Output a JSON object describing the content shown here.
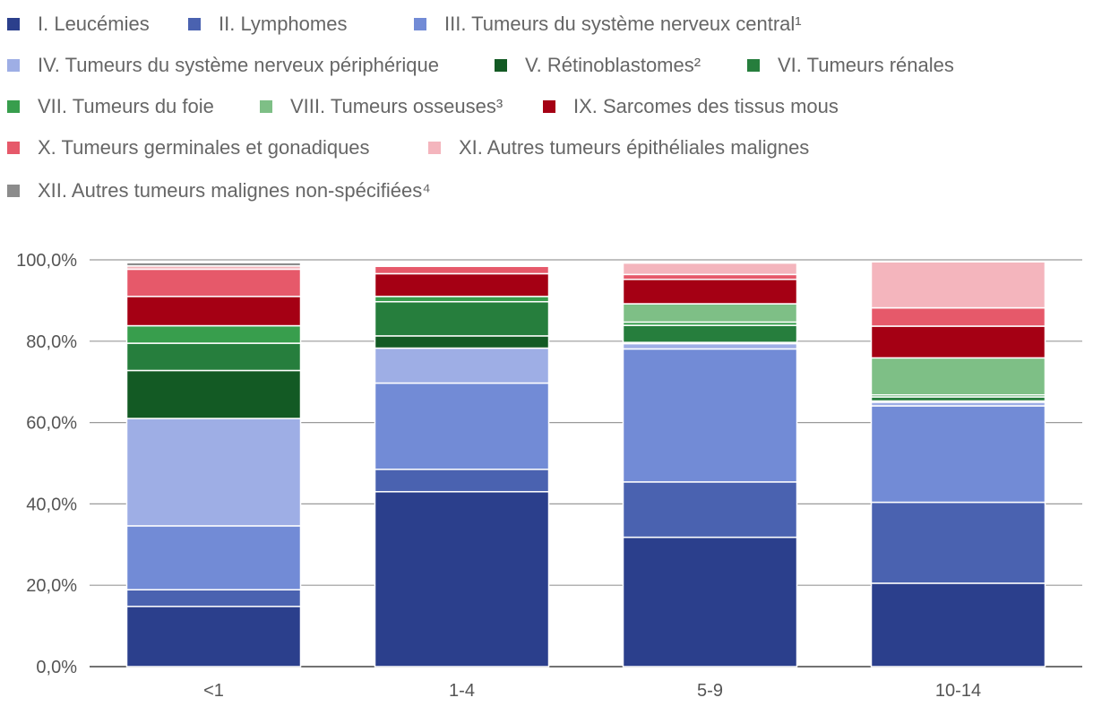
{
  "chart_data": {
    "type": "bar",
    "stacked": true,
    "title": "",
    "xlabel": "",
    "ylabel": "",
    "ylim": [
      0,
      100
    ],
    "y_ticks": [
      "0,0%",
      "20,0%",
      "40,0%",
      "60,0%",
      "80,0%",
      "100,0%"
    ],
    "categories": [
      "<1",
      "1-4",
      "5-9",
      "10-14"
    ],
    "legend_position": "top",
    "series": [
      {
        "name": "I. Leucémies",
        "color": "#2b3f8c",
        "values": [
          14.8,
          43.0,
          31.8,
          20.5
        ]
      },
      {
        "name": "II. Lymphomes",
        "color": "#4a62b0",
        "values": [
          4.1,
          5.5,
          13.6,
          19.9
        ]
      },
      {
        "name": "III. Tumeurs du système nerveux central¹",
        "color": "#728bd6",
        "values": [
          15.7,
          21.2,
          32.7,
          23.7
        ]
      },
      {
        "name": "IV. Tumeurs du système nerveux périphérique",
        "color": "#9eaee5",
        "values": [
          26.4,
          8.6,
          1.3,
          0.9
        ]
      },
      {
        "name": "V. Rétinoblastomes²",
        "color": "#135a24",
        "values": [
          11.8,
          3.0,
          0.3,
          0.3
        ]
      },
      {
        "name": "VI. Tumeurs rénales",
        "color": "#267e3d",
        "values": [
          6.7,
          8.4,
          4.2,
          1.0
        ]
      },
      {
        "name": "VII. Tumeurs du foie",
        "color": "#389e4d",
        "values": [
          4.3,
          1.3,
          0.8,
          0.5
        ]
      },
      {
        "name": "VIII. Tumeurs osseuses³",
        "color": "#7ebf86",
        "values": [
          0,
          0,
          4.5,
          9.1
        ]
      },
      {
        "name": "IX. Sarcomes des tissus mous",
        "color": "#a50014",
        "values": [
          7.2,
          5.6,
          6.0,
          7.8
        ]
      },
      {
        "name": "X. Tumeurs germinales et gonadiques",
        "color": "#e6596a",
        "values": [
          6.7,
          1.8,
          1.2,
          4.5
        ]
      },
      {
        "name": "XI. Autres tumeurs épithéliales malignes",
        "color": "#f4b5bd",
        "values": [
          0.8,
          0.2,
          2.8,
          11.3
        ]
      },
      {
        "name": "XII. Autres tumeurs malignes non-spécifiées⁴",
        "color": "#8c8c8c",
        "values": [
          0.8,
          0,
          0,
          0
        ]
      }
    ]
  }
}
